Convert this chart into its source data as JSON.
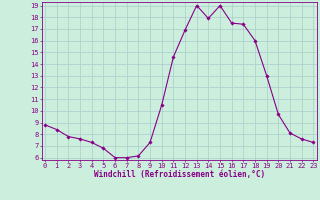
{
  "hours": [
    0,
    1,
    2,
    3,
    4,
    5,
    6,
    7,
    8,
    9,
    10,
    11,
    12,
    13,
    14,
    15,
    16,
    17,
    18,
    19,
    20,
    21,
    22,
    23
  ],
  "values": [
    8.8,
    8.4,
    7.8,
    7.6,
    7.3,
    6.8,
    6.0,
    6.0,
    6.15,
    7.3,
    10.5,
    14.6,
    16.9,
    19.0,
    17.9,
    19.0,
    17.5,
    17.4,
    16.0,
    13.0,
    9.7,
    8.1,
    7.6,
    7.3
  ],
  "line_color": "#880088",
  "marker": "D",
  "marker_size": 1.8,
  "linewidth": 0.8,
  "bg_color": "#cceedd",
  "grid_color": "#aacccc",
  "xlabel": "Windchill (Refroidissement éolien,°C)",
  "xlabel_color": "#880088",
  "xlabel_fontsize": 5.5,
  "tick_color": "#880088",
  "tick_fontsize": 5.0,
  "ylim_min": 6,
  "ylim_max": 19,
  "xlim_min": 0,
  "xlim_max": 23,
  "yticks": [
    6,
    7,
    8,
    9,
    10,
    11,
    12,
    13,
    14,
    15,
    16,
    17,
    18,
    19
  ],
  "xticks": [
    0,
    1,
    2,
    3,
    4,
    5,
    6,
    7,
    8,
    9,
    10,
    11,
    12,
    13,
    14,
    15,
    16,
    17,
    18,
    19,
    20,
    21,
    22,
    23
  ]
}
